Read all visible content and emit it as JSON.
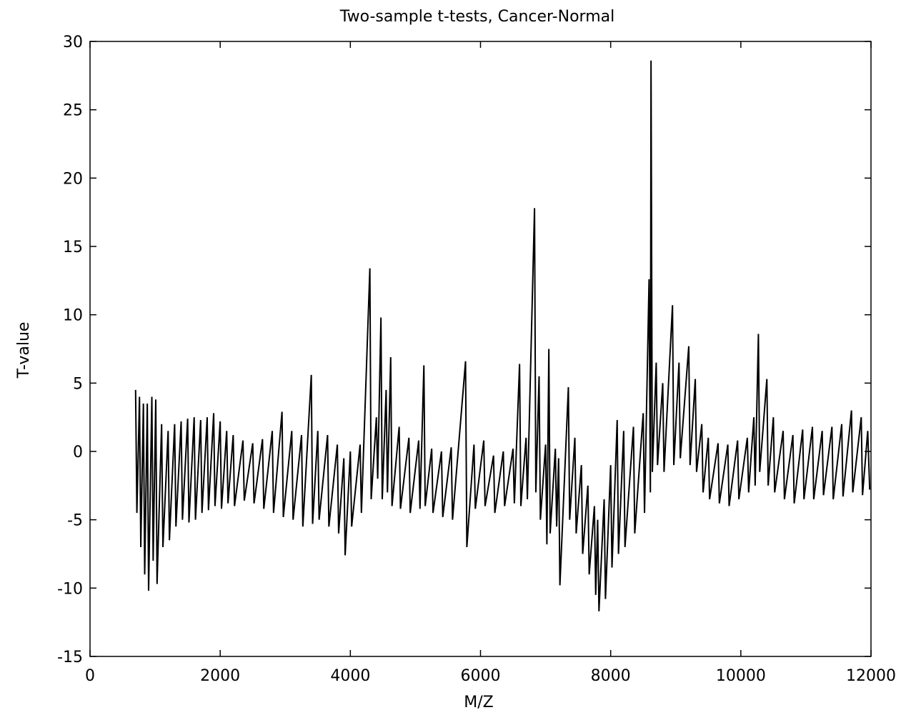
{
  "chart_data": {
    "type": "line",
    "title": "Two-sample t-tests, Cancer-Normal",
    "x_label": "M/Z",
    "y_label": "T-value",
    "color": "#000000",
    "xlim": [
      0,
      12000
    ],
    "xticks": [
      0,
      2000,
      4000,
      6000,
      8000,
      10000,
      12000
    ],
    "ylim": [
      -15,
      30
    ],
    "yticks": [
      -15,
      -10,
      -5,
      0,
      5,
      10,
      15,
      20,
      25,
      30
    ],
    "x": [
      700,
      720,
      760,
      780,
      820,
      840,
      880,
      900,
      950,
      970,
      1010,
      1030,
      1100,
      1120,
      1200,
      1220,
      1300,
      1320,
      1400,
      1420,
      1500,
      1520,
      1600,
      1620,
      1700,
      1720,
      1800,
      1820,
      1900,
      1920,
      2000,
      2020,
      2100,
      2120,
      2200,
      2220,
      2350,
      2370,
      2500,
      2520,
      2650,
      2670,
      2800,
      2820,
      2950,
      2970,
      3100,
      3120,
      3250,
      3270,
      3400,
      3420,
      3500,
      3520,
      3650,
      3670,
      3800,
      3820,
      3900,
      3920,
      4000,
      4020,
      4150,
      4170,
      4300,
      4320,
      4400,
      4420,
      4470,
      4490,
      4550,
      4570,
      4620,
      4640,
      4750,
      4770,
      4900,
      4920,
      5050,
      5070,
      5130,
      5150,
      5250,
      5270,
      5400,
      5420,
      5550,
      5570,
      5770,
      5790,
      5900,
      5920,
      6050,
      6070,
      6200,
      6220,
      6350,
      6370,
      6500,
      6520,
      6600,
      6620,
      6700,
      6720,
      6830,
      6850,
      6900,
      6920,
      7000,
      7020,
      7050,
      7070,
      7150,
      7170,
      7200,
      7220,
      7350,
      7370,
      7450,
      7470,
      7550,
      7570,
      7650,
      7670,
      7750,
      7770,
      7800,
      7820,
      7900,
      7920,
      8000,
      8020,
      8100,
      8120,
      8200,
      8220,
      8350,
      8370,
      8500,
      8520,
      8590,
      8610,
      8620,
      8640,
      8700,
      8720,
      8800,
      8820,
      8950,
      8970,
      9050,
      9070,
      9200,
      9220,
      9300,
      9320,
      9400,
      9420,
      9500,
      9520,
      9650,
      9670,
      9800,
      9820,
      9950,
      9970,
      10100,
      10120,
      10200,
      10220,
      10270,
      10290,
      10400,
      10420,
      10500,
      10520,
      10650,
      10670,
      10800,
      10820,
      10950,
      10970,
      11100,
      11120,
      11250,
      11270,
      11400,
      11420,
      11550,
      11570,
      11700,
      11720,
      11850,
      11870,
      11950,
      11980
    ],
    "values": [
      4.5,
      -4.5,
      4,
      -7,
      3.5,
      -9,
      3.5,
      -10.2,
      4,
      -8,
      3.8,
      -9.7,
      2,
      -7,
      1.5,
      -6.5,
      2,
      -5.5,
      2.2,
      -5,
      2.4,
      -5.2,
      2.5,
      -5,
      2.3,
      -4.5,
      2.5,
      -4.3,
      2.8,
      -4,
      2.2,
      -4.2,
      1.5,
      -3.8,
      1.2,
      -4,
      0.8,
      -3.6,
      0.6,
      -3.8,
      0.9,
      -4.2,
      1.5,
      -4.5,
      2.9,
      -4.8,
      1.5,
      -5,
      1.2,
      -5.5,
      5.6,
      -5.3,
      1.5,
      -5,
      1.2,
      -5.5,
      0.5,
      -6,
      -0.5,
      -7.6,
      0,
      -5.5,
      0.5,
      -4.5,
      13.4,
      -3.5,
      2.5,
      -2,
      9.8,
      -3.5,
      4.5,
      -3,
      6.9,
      -4,
      1.8,
      -4.2,
      1,
      -4.5,
      0.8,
      -4.2,
      6.3,
      -4,
      0.2,
      -4.5,
      0,
      -4.8,
      0.3,
      -5,
      6.6,
      -7,
      0.5,
      -4.2,
      0.8,
      -4,
      -0.3,
      -4.5,
      0,
      -4,
      0.2,
      -3.8,
      6.4,
      -4,
      1,
      -3.5,
      17.8,
      -3,
      5.5,
      -5,
      0.5,
      -6.8,
      7.5,
      -6,
      0.2,
      -5.5,
      -0.5,
      -9.8,
      4.7,
      -5,
      1,
      -6,
      -1,
      -7.5,
      -2.5,
      -9,
      -4,
      -10.5,
      -5,
      -11.7,
      -3.5,
      -10.8,
      -1,
      -8.5,
      2.3,
      -7.5,
      1.5,
      -7,
      1.8,
      -6,
      2.8,
      -4.5,
      12.6,
      -3,
      28.6,
      -1.5,
      6.5,
      -1,
      5,
      -1.5,
      10.7,
      -1,
      6.5,
      -0.5,
      7.7,
      -1,
      5.3,
      -1.5,
      2,
      -3,
      1,
      -3.5,
      0.6,
      -3.8,
      0.5,
      -4,
      0.8,
      -3.5,
      1,
      -3,
      2.5,
      -2.5,
      8.6,
      -1.5,
      5.3,
      -2.5,
      2.5,
      -3,
      1.5,
      -3.5,
      1.2,
      -3.8,
      1.6,
      -3.5,
      1.8,
      -3.5,
      1.5,
      -3.2,
      1.8,
      -3.5,
      2,
      -3.3,
      3,
      -3,
      2.5,
      -3.2,
      1.5,
      -2.8
    ]
  }
}
